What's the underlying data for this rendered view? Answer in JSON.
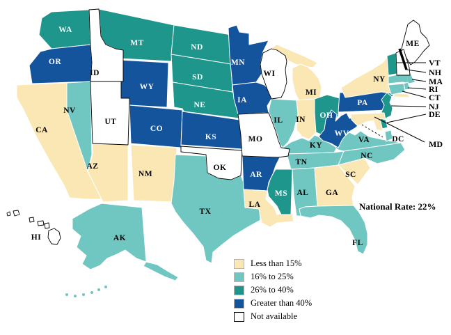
{
  "figure": {
    "national_rate": "National Rate: 22%"
  },
  "colors": {
    "lt15": "#FBE7B4",
    "r16to25": "#70C6C0",
    "r26to40": "#1F968C",
    "gt40": "#14549C",
    "na": "#FFFFFF",
    "colored_border": "#FFFFFF",
    "na_border": "#000000",
    "label_dark": "#000000",
    "label_light": "#FFFFFF",
    "callout_line": "#000000"
  },
  "legend": {
    "items": [
      {
        "key": "lt15",
        "label": "Less than 15%"
      },
      {
        "key": "r16to25",
        "label": "16% to 25%"
      },
      {
        "key": "r26to40",
        "label": "26% to 40%"
      },
      {
        "key": "gt40",
        "label": "Greater than 40%"
      },
      {
        "key": "na",
        "label": "Not available"
      }
    ]
  },
  "states": [
    {
      "id": "WA",
      "label": "WA",
      "category": "r26to40"
    },
    {
      "id": "OR",
      "label": "OR",
      "category": "gt40"
    },
    {
      "id": "CA",
      "label": "CA",
      "category": "lt15"
    },
    {
      "id": "NV",
      "label": "NV",
      "category": "r16to25"
    },
    {
      "id": "MT",
      "label": "MT",
      "category": "r26to40"
    },
    {
      "id": "WY",
      "label": "WY",
      "category": "gt40"
    },
    {
      "id": "AZ",
      "label": "AZ",
      "category": "lt15"
    },
    {
      "id": "NM",
      "label": "NM",
      "category": "lt15"
    },
    {
      "id": "CO",
      "label": "CO",
      "category": "gt40"
    },
    {
      "id": "ND",
      "label": "ND",
      "category": "r26to40"
    },
    {
      "id": "SD",
      "label": "SD",
      "category": "r26to40"
    },
    {
      "id": "NE",
      "label": "NE",
      "category": "r26to40"
    },
    {
      "id": "KS",
      "label": "KS",
      "category": "gt40"
    },
    {
      "id": "TX",
      "label": "TX",
      "category": "r16to25"
    },
    {
      "id": "MN",
      "label": "MN",
      "category": "gt40"
    },
    {
      "id": "IA",
      "label": "IA",
      "category": "gt40"
    },
    {
      "id": "AR",
      "label": "AR",
      "category": "gt40"
    },
    {
      "id": "LA",
      "label": "LA",
      "category": "lt15"
    },
    {
      "id": "IL",
      "label": "IL",
      "category": "r16to25"
    },
    {
      "id": "MI",
      "label": "MI",
      "category": "lt15"
    },
    {
      "id": "IN",
      "label": "IN",
      "category": "lt15"
    },
    {
      "id": "OH",
      "label": "OH",
      "category": "r26to40"
    },
    {
      "id": "KY",
      "label": "KY",
      "category": "r16to25"
    },
    {
      "id": "TN",
      "label": "TN",
      "category": "r16to25"
    },
    {
      "id": "MS",
      "label": "MS",
      "category": "r26to40"
    },
    {
      "id": "AL",
      "label": "AL",
      "category": "r16to25"
    },
    {
      "id": "GA",
      "label": "GA",
      "category": "lt15"
    },
    {
      "id": "SC",
      "label": "SC",
      "category": "lt15"
    },
    {
      "id": "FL",
      "label": "FL",
      "category": "r16to25"
    },
    {
      "id": "NC",
      "label": "NC",
      "category": "r16to25"
    },
    {
      "id": "VA",
      "label": "VA",
      "category": "r16to25"
    },
    {
      "id": "WV",
      "label": "WV",
      "category": "gt40"
    },
    {
      "id": "PA",
      "label": "PA",
      "category": "gt40"
    },
    {
      "id": "NY",
      "label": "NY",
      "category": "lt15"
    },
    {
      "id": "NJ",
      "label": "NJ",
      "category": "r26to40"
    },
    {
      "id": "VT",
      "label": "VT",
      "category": "r26to40"
    },
    {
      "id": "MA",
      "label": "MA",
      "category": "r16to25"
    },
    {
      "id": "RI",
      "label": "RI",
      "category": "r16to25"
    },
    {
      "id": "CT",
      "label": "CT",
      "category": "r16to25"
    },
    {
      "id": "DE",
      "label": "DE",
      "category": "r26to40"
    },
    {
      "id": "MD",
      "label": "MD",
      "category": "lt15"
    },
    {
      "id": "DC",
      "label": "DC",
      "category": "r16to25"
    },
    {
      "id": "AK",
      "label": "AK",
      "category": "r16to25"
    },
    {
      "id": "ID",
      "label": "ID",
      "category": "na"
    },
    {
      "id": "UT",
      "label": "UT",
      "category": "na"
    },
    {
      "id": "OK",
      "label": "OK",
      "category": "na"
    },
    {
      "id": "MO",
      "label": "MO",
      "category": "na"
    },
    {
      "id": "WI",
      "label": "WI",
      "category": "na"
    },
    {
      "id": "ME",
      "label": "ME",
      "category": "na"
    },
    {
      "id": "NH",
      "label": "NH",
      "category": "na"
    },
    {
      "id": "HI",
      "label": "HI",
      "category": "na"
    }
  ],
  "callouts": [
    {
      "id": "VT",
      "label": "VT"
    },
    {
      "id": "NH",
      "label": "NH"
    },
    {
      "id": "MA",
      "label": "MA"
    },
    {
      "id": "RI",
      "label": "RI"
    },
    {
      "id": "CT",
      "label": "CT"
    },
    {
      "id": "NJ",
      "label": "NJ"
    },
    {
      "id": "DE",
      "label": "DE"
    },
    {
      "id": "MD",
      "label": "MD"
    }
  ]
}
